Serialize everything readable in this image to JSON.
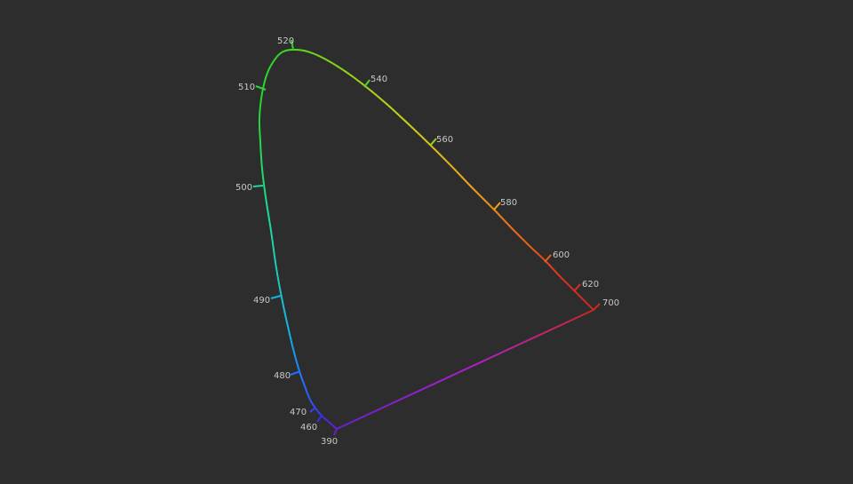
{
  "diagram": {
    "background": "#2d2d2d",
    "label_color": "#c8c8c8",
    "locus_colors": [
      "#6a1fd0",
      "#3a2fe0",
      "#1f6fff",
      "#17b4e0",
      "#1fd8a0",
      "#2ad33a",
      "#31d22a",
      "#7fd21a",
      "#c8d21a",
      "#f0a21a",
      "#e8601a",
      "#d83020",
      "#c82828"
    ],
    "purple_line_colors": [
      "#c82828",
      "#b020c8",
      "#6a1fd0"
    ],
    "wavelength_labels": [
      {
        "nm": 390,
        "label": "390"
      },
      {
        "nm": 460,
        "label": "460"
      },
      {
        "nm": 470,
        "label": "470"
      },
      {
        "nm": 480,
        "label": "480"
      },
      {
        "nm": 490,
        "label": "490"
      },
      {
        "nm": 500,
        "label": "500"
      },
      {
        "nm": 510,
        "label": "510"
      },
      {
        "nm": 520,
        "label": "520"
      },
      {
        "nm": 540,
        "label": "540"
      },
      {
        "nm": 560,
        "label": "560"
      },
      {
        "nm": 580,
        "label": "580"
      },
      {
        "nm": 600,
        "label": "600"
      },
      {
        "nm": 620,
        "label": "620"
      },
      {
        "nm": 700,
        "label": "700"
      }
    ]
  }
}
